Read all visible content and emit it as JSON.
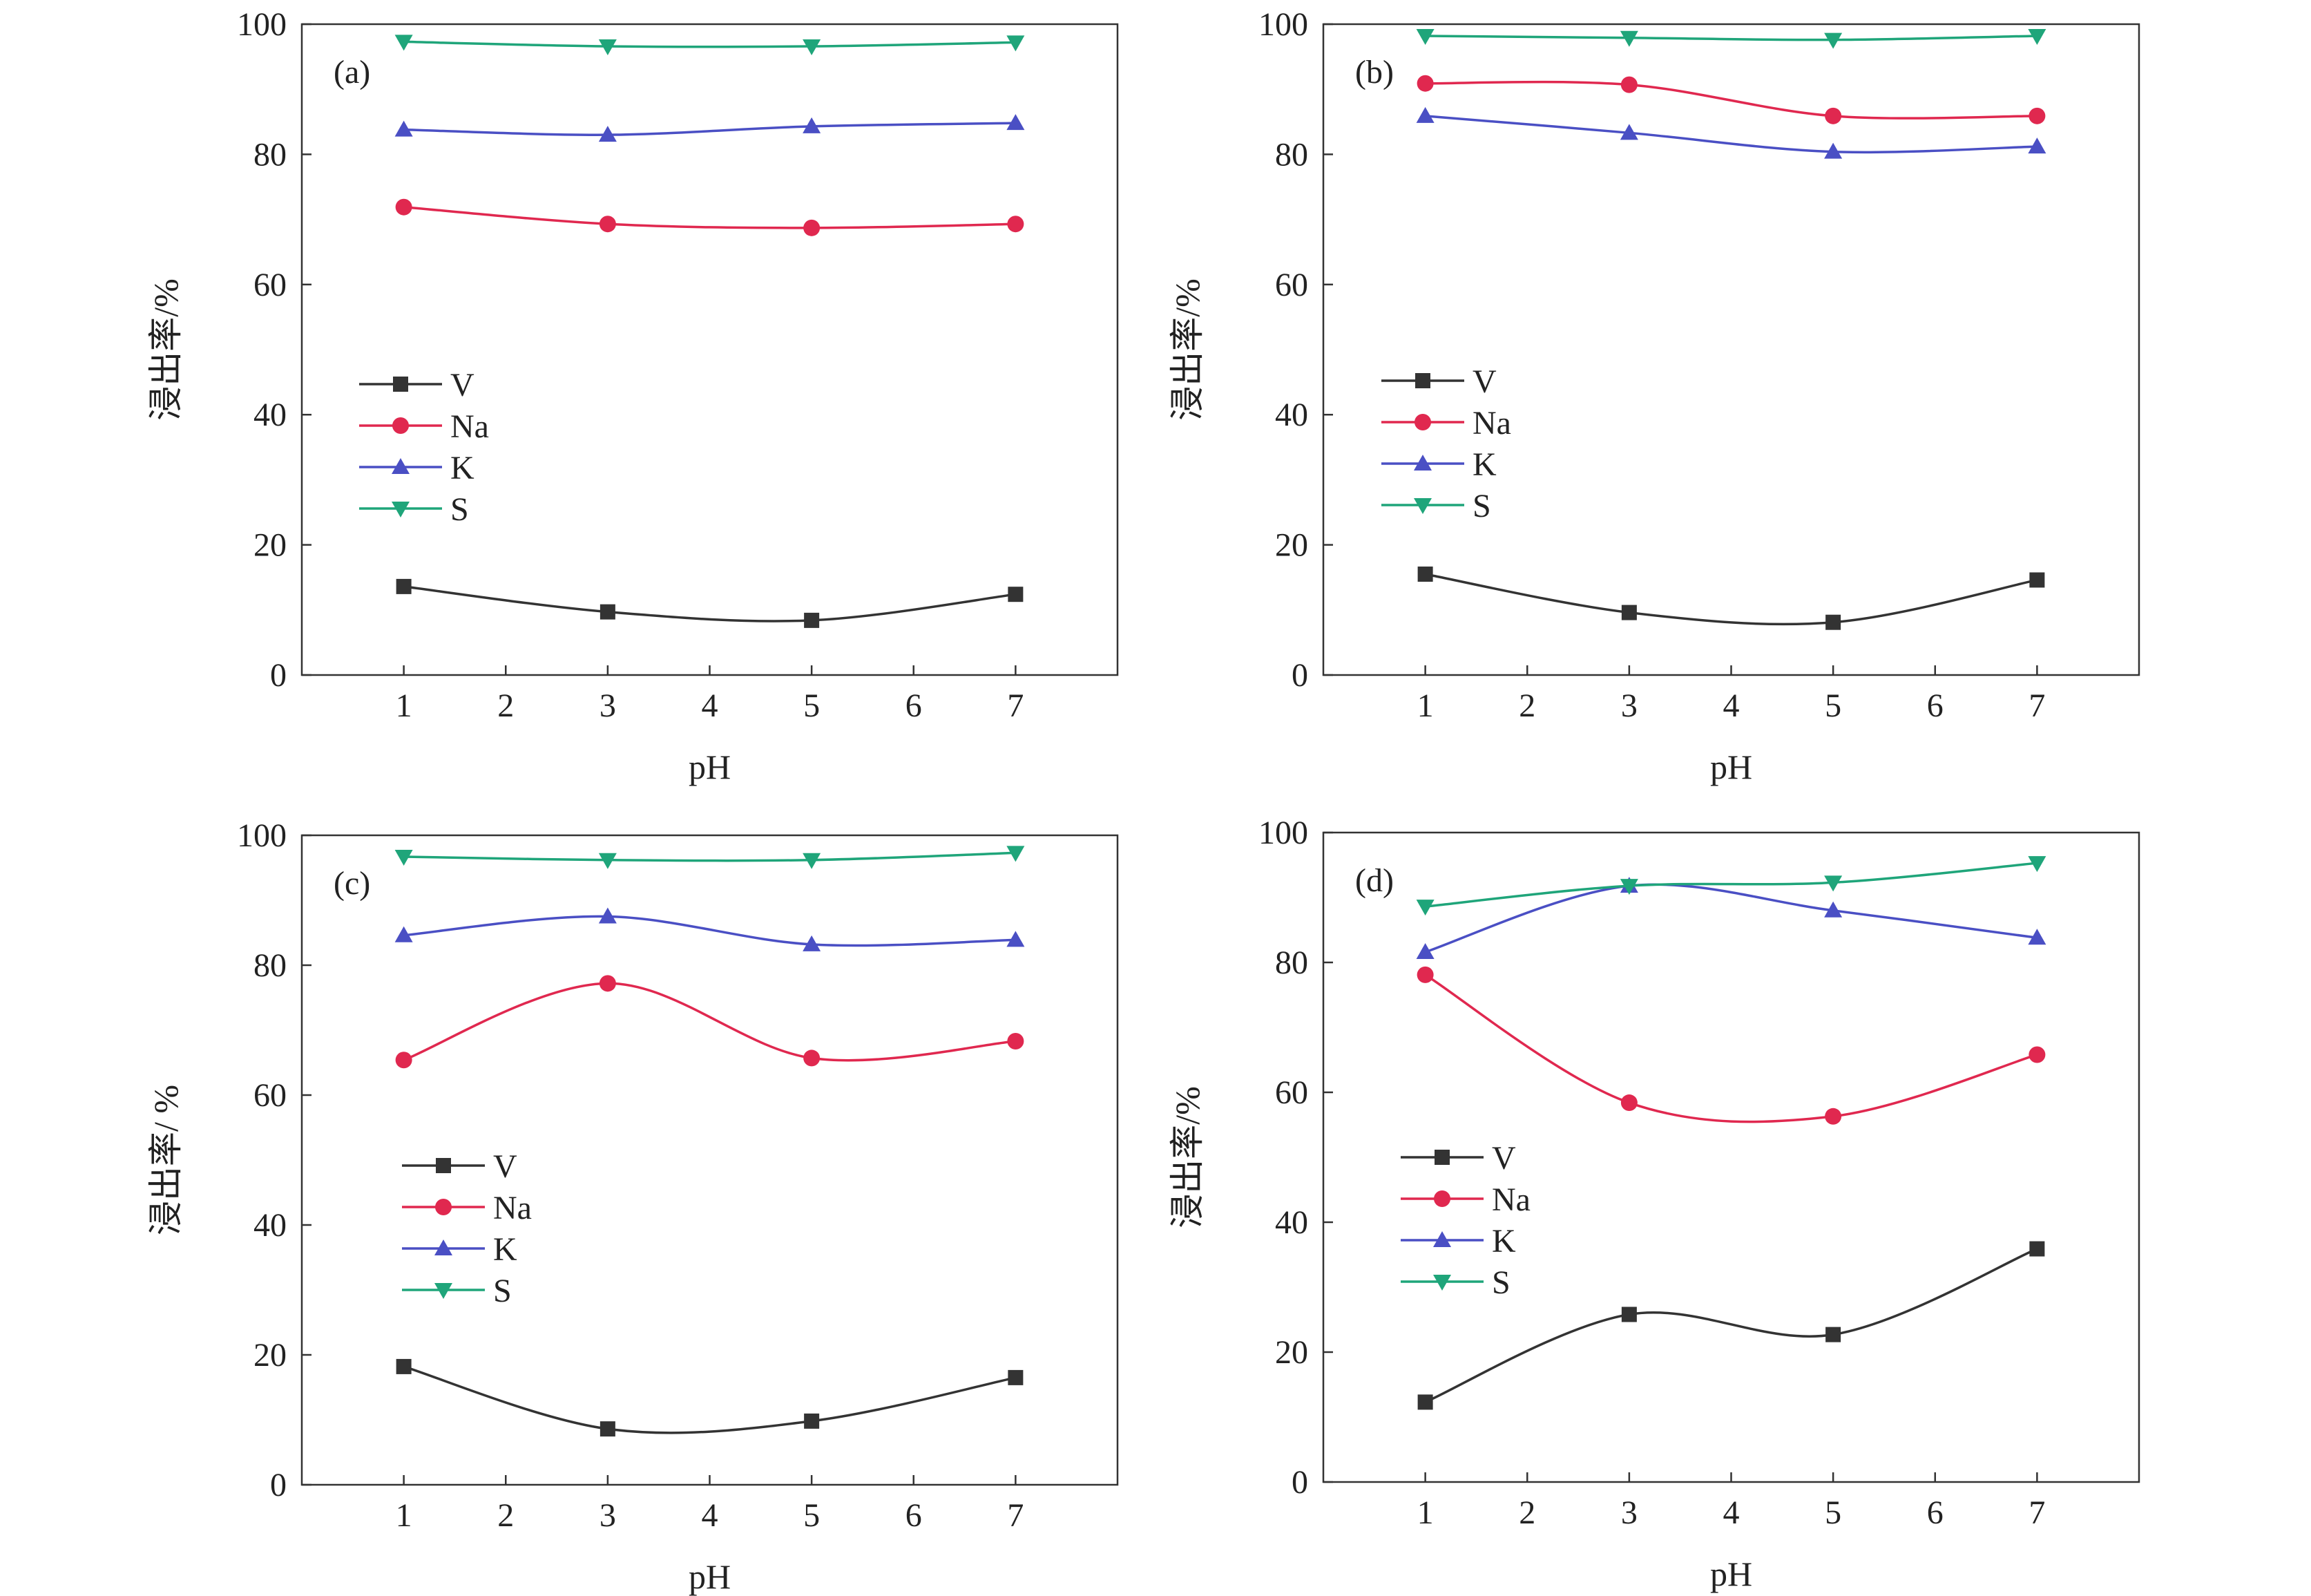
{
  "colors": {
    "V": "#333333",
    "Na": "#e0284f",
    "K": "#4a4fc4",
    "S": "#1fa57a",
    "axis": "#333333"
  },
  "chart_data": [
    {
      "type": "line",
      "panel_label": "(a)",
      "xlabel": "pH",
      "ylabel": "浸出率/%",
      "xlim": [
        0,
        8
      ],
      "ylim": [
        0,
        100
      ],
      "xticks": [
        1,
        2,
        3,
        4,
        5,
        6,
        7
      ],
      "yticks": [
        0,
        20,
        40,
        60,
        80,
        100
      ],
      "legend_position": "center-left",
      "x": [
        1,
        3,
        5,
        7
      ],
      "series": [
        {
          "name": "V",
          "marker": "square",
          "values": [
            13.6,
            9.7,
            8.4,
            12.4
          ]
        },
        {
          "name": "Na",
          "marker": "circle",
          "values": [
            71.9,
            69.3,
            68.7,
            69.3
          ]
        },
        {
          "name": "K",
          "marker": "triangle-up",
          "values": [
            83.8,
            83.0,
            84.3,
            84.8
          ]
        },
        {
          "name": "S",
          "marker": "triangle-down",
          "values": [
            97.3,
            96.6,
            96.6,
            97.2
          ]
        }
      ]
    },
    {
      "type": "line",
      "panel_label": "(b)",
      "xlabel": "pH",
      "ylabel": "浸出率/%",
      "xlim": [
        0,
        8
      ],
      "ylim": [
        0,
        100
      ],
      "xticks": [
        1,
        2,
        3,
        4,
        5,
        6,
        7
      ],
      "yticks": [
        0,
        20,
        40,
        60,
        80,
        100
      ],
      "legend_position": "center-left",
      "x": [
        1,
        3,
        5,
        7
      ],
      "series": [
        {
          "name": "V",
          "marker": "square",
          "values": [
            15.5,
            9.6,
            8.1,
            14.6
          ]
        },
        {
          "name": "Na",
          "marker": "circle",
          "values": [
            90.9,
            90.7,
            85.9,
            85.9
          ]
        },
        {
          "name": "K",
          "marker": "triangle-up",
          "values": [
            85.9,
            83.3,
            80.4,
            81.2
          ]
        },
        {
          "name": "S",
          "marker": "triangle-down",
          "values": [
            98.2,
            97.9,
            97.6,
            98.2
          ]
        }
      ]
    },
    {
      "type": "line",
      "panel_label": "(c)",
      "xlabel": "pH",
      "ylabel": "浸出率/ %",
      "xlim": [
        0,
        8
      ],
      "ylim": [
        0,
        100
      ],
      "xticks": [
        1,
        2,
        3,
        4,
        5,
        6,
        7
      ],
      "yticks": [
        0,
        20,
        40,
        60,
        80,
        100
      ],
      "legend_position": "center-left",
      "x": [
        1,
        3,
        5,
        7
      ],
      "series": [
        {
          "name": "V",
          "marker": "square",
          "values": [
            18.2,
            8.6,
            9.8,
            16.5
          ]
        },
        {
          "name": "Na",
          "marker": "circle",
          "values": [
            65.4,
            77.2,
            65.7,
            68.3
          ]
        },
        {
          "name": "K",
          "marker": "triangle-up",
          "values": [
            84.6,
            87.5,
            83.2,
            83.9
          ]
        },
        {
          "name": "S",
          "marker": "triangle-down",
          "values": [
            96.7,
            96.2,
            96.2,
            97.3
          ]
        }
      ]
    },
    {
      "type": "line",
      "panel_label": "(d)",
      "xlabel": "pH",
      "ylabel": "浸出率/%",
      "xlim": [
        0,
        8
      ],
      "ylim": [
        0,
        100
      ],
      "xticks": [
        1,
        2,
        3,
        4,
        5,
        6,
        7
      ],
      "yticks": [
        0,
        20,
        40,
        60,
        80,
        100
      ],
      "legend_position": "center-left",
      "x": [
        1,
        3,
        5,
        7
      ],
      "series": [
        {
          "name": "V",
          "marker": "square",
          "values": [
            12.3,
            25.8,
            22.7,
            35.9
          ]
        },
        {
          "name": "Na",
          "marker": "circle",
          "values": [
            78.1,
            58.4,
            56.3,
            65.8
          ]
        },
        {
          "name": "K",
          "marker": "triangle-up",
          "values": [
            81.6,
            91.8,
            88.0,
            83.8
          ]
        },
        {
          "name": "S",
          "marker": "triangle-down",
          "values": [
            88.6,
            91.8,
            92.3,
            95.3
          ]
        }
      ]
    }
  ]
}
